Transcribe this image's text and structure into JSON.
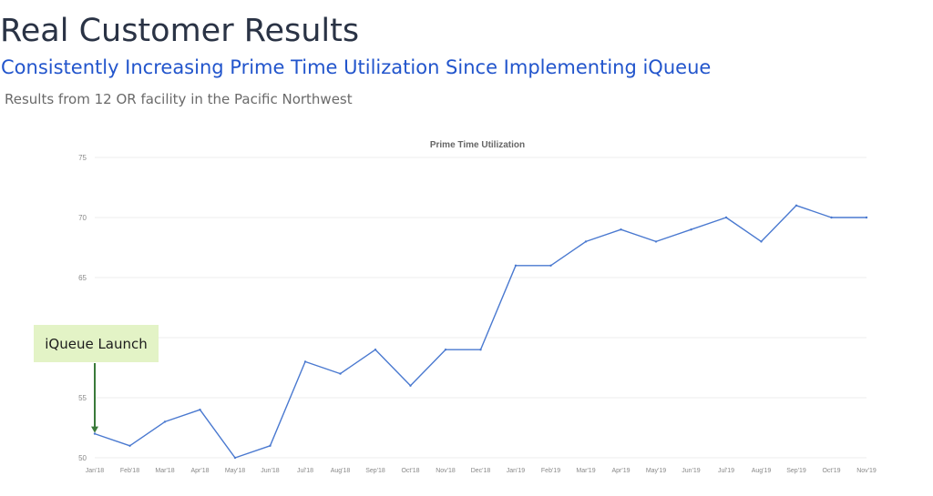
{
  "header": {
    "title": "Real Customer Results",
    "subtitle": "Consistently Increasing Prime Time Utilization Since Implementing iQueue",
    "note": "Results from 12 OR facility in the Pacific Northwest"
  },
  "annotation": {
    "label": "iQueue Launch",
    "points_to": "Jan'18"
  },
  "colors": {
    "line": "#4a79d0",
    "grid": "#eeeeee",
    "arrow": "#3a7a3a",
    "callout_bg": "#e3f3c6"
  },
  "chart_data": {
    "type": "line",
    "title": "Prime Time Utilization",
    "xlabel": "",
    "ylabel": "",
    "categories": [
      "Jan'18",
      "Feb'18",
      "Mar'18",
      "Apr'18",
      "May'18",
      "Jun'18",
      "Jul'18",
      "Aug'18",
      "Sep'18",
      "Oct'18",
      "Nov'18",
      "Dec'18",
      "Jan'19",
      "Feb'19",
      "Mar'19",
      "Apr'19",
      "May'19",
      "Jun'19",
      "Jul'19",
      "Aug'19",
      "Sep'19",
      "Oct'19",
      "Nov'19"
    ],
    "series": [
      {
        "values": [
          52,
          51,
          53,
          54,
          50,
          51,
          58,
          57,
          59,
          56,
          59,
          59,
          66,
          66,
          68,
          69,
          68,
          69,
          70,
          68,
          71,
          70,
          70
        ]
      }
    ],
    "ylim": [
      50,
      75
    ],
    "yticks": [
      "50",
      "55",
      "",
      "65",
      "70",
      "75"
    ],
    "grid": true,
    "legend": "none"
  }
}
